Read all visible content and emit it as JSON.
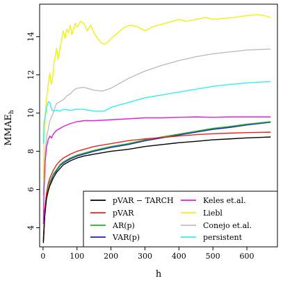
{
  "chart_data": {
    "type": "line",
    "xlabel": "h",
    "ylabel_main": "MMAE",
    "ylabel_sub": "h",
    "xlim": [
      -10,
      690
    ],
    "ylim": [
      3.0,
      15.7
    ],
    "x_ticks": [
      0,
      100,
      200,
      300,
      400,
      500,
      600
    ],
    "x_tick_labels": [
      "0",
      "100",
      "200",
      "300",
      "400",
      "500",
      "600"
    ],
    "y_ticks": [
      4,
      6,
      8,
      10,
      12,
      14
    ],
    "y_tick_labels": [
      "4",
      "6",
      "8",
      "10",
      "12",
      "14"
    ],
    "legend_position": "bottom-right",
    "series": [
      {
        "name": "pVAR − TARCH",
        "color": "#000000",
        "points": [
          [
            1,
            3.2
          ],
          [
            5,
            4.6
          ],
          [
            10,
            5.5
          ],
          [
            15,
            5.9
          ],
          [
            20,
            6.2
          ],
          [
            30,
            6.6
          ],
          [
            40,
            6.9
          ],
          [
            50,
            7.1
          ],
          [
            60,
            7.3
          ],
          [
            80,
            7.5
          ],
          [
            100,
            7.65
          ],
          [
            120,
            7.75
          ],
          [
            150,
            7.85
          ],
          [
            200,
            8.0
          ],
          [
            250,
            8.1
          ],
          [
            300,
            8.25
          ],
          [
            350,
            8.35
          ],
          [
            400,
            8.45
          ],
          [
            450,
            8.52
          ],
          [
            500,
            8.6
          ],
          [
            550,
            8.65
          ],
          [
            600,
            8.7
          ],
          [
            670,
            8.75
          ]
        ]
      },
      {
        "name": "pVAR",
        "color": "#e8241c",
        "points": [
          [
            1,
            3.4
          ],
          [
            5,
            4.9
          ],
          [
            10,
            5.8
          ],
          [
            15,
            6.3
          ],
          [
            20,
            6.6
          ],
          [
            30,
            7.0
          ],
          [
            40,
            7.3
          ],
          [
            50,
            7.5
          ],
          [
            60,
            7.65
          ],
          [
            80,
            7.85
          ],
          [
            100,
            8.0
          ],
          [
            120,
            8.1
          ],
          [
            150,
            8.25
          ],
          [
            200,
            8.4
          ],
          [
            250,
            8.55
          ],
          [
            300,
            8.65
          ],
          [
            350,
            8.72
          ],
          [
            400,
            8.8
          ],
          [
            450,
            8.87
          ],
          [
            500,
            8.92
          ],
          [
            550,
            8.95
          ],
          [
            600,
            8.98
          ],
          [
            670,
            9.0
          ]
        ]
      },
      {
        "name": "AR(p)",
        "color": "#22b522",
        "points": [
          [
            1,
            3.3
          ],
          [
            5,
            4.7
          ],
          [
            10,
            5.6
          ],
          [
            15,
            6.0
          ],
          [
            20,
            6.4
          ],
          [
            30,
            6.8
          ],
          [
            40,
            7.05
          ],
          [
            50,
            7.3
          ],
          [
            60,
            7.45
          ],
          [
            80,
            7.65
          ],
          [
            100,
            7.8
          ],
          [
            120,
            7.9
          ],
          [
            150,
            8.05
          ],
          [
            200,
            8.25
          ],
          [
            250,
            8.4
          ],
          [
            300,
            8.6
          ],
          [
            350,
            8.75
          ],
          [
            400,
            8.9
          ],
          [
            450,
            9.05
          ],
          [
            500,
            9.2
          ],
          [
            550,
            9.3
          ],
          [
            600,
            9.42
          ],
          [
            670,
            9.55
          ]
        ]
      },
      {
        "name": "VAR(p)",
        "color": "#1c1ccc",
        "points": [
          [
            1,
            3.3
          ],
          [
            5,
            4.7
          ],
          [
            10,
            5.55
          ],
          [
            15,
            5.95
          ],
          [
            20,
            6.35
          ],
          [
            30,
            6.75
          ],
          [
            40,
            7.0
          ],
          [
            50,
            7.25
          ],
          [
            60,
            7.4
          ],
          [
            80,
            7.6
          ],
          [
            100,
            7.75
          ],
          [
            120,
            7.85
          ],
          [
            150,
            8.0
          ],
          [
            200,
            8.2
          ],
          [
            250,
            8.35
          ],
          [
            300,
            8.55
          ],
          [
            350,
            8.7
          ],
          [
            400,
            8.85
          ],
          [
            450,
            9.0
          ],
          [
            500,
            9.15
          ],
          [
            550,
            9.25
          ],
          [
            600,
            9.38
          ],
          [
            670,
            9.52
          ]
        ]
      },
      {
        "name": "persistent",
        "color": "#33f0f0",
        "points": [
          [
            1,
            8.4
          ],
          [
            3,
            9.5
          ],
          [
            8,
            10.0
          ],
          [
            12,
            10.4
          ],
          [
            16,
            10.6
          ],
          [
            20,
            10.55
          ],
          [
            25,
            10.2
          ],
          [
            30,
            10.1
          ],
          [
            40,
            10.15
          ],
          [
            50,
            10.1
          ],
          [
            60,
            10.2
          ],
          [
            80,
            10.15
          ],
          [
            100,
            10.2
          ],
          [
            120,
            10.2
          ],
          [
            150,
            10.1
          ],
          [
            180,
            10.1
          ],
          [
            200,
            10.3
          ],
          [
            250,
            10.55
          ],
          [
            300,
            10.8
          ],
          [
            350,
            10.95
          ],
          [
            400,
            11.1
          ],
          [
            450,
            11.25
          ],
          [
            500,
            11.4
          ],
          [
            550,
            11.5
          ],
          [
            600,
            11.58
          ],
          [
            670,
            11.65
          ]
        ]
      },
      {
        "name": "Keles et.al.",
        "color": "#e020e0",
        "points": [
          [
            1,
            4.2
          ],
          [
            3,
            6.0
          ],
          [
            6,
            7.4
          ],
          [
            10,
            8.2
          ],
          [
            15,
            8.6
          ],
          [
            20,
            8.8
          ],
          [
            25,
            8.7
          ],
          [
            30,
            8.9
          ],
          [
            40,
            9.1
          ],
          [
            50,
            9.2
          ],
          [
            60,
            9.3
          ],
          [
            80,
            9.45
          ],
          [
            100,
            9.55
          ],
          [
            120,
            9.6
          ],
          [
            150,
            9.6
          ],
          [
            200,
            9.65
          ],
          [
            250,
            9.7
          ],
          [
            300,
            9.75
          ],
          [
            350,
            9.75
          ],
          [
            400,
            9.78
          ],
          [
            450,
            9.8
          ],
          [
            500,
            9.78
          ],
          [
            550,
            9.8
          ],
          [
            600,
            9.8
          ],
          [
            670,
            9.8
          ]
        ]
      },
      {
        "name": "Liebl",
        "color": "#f2f210",
        "points": [
          [
            1,
            6.5
          ],
          [
            4,
            9.2
          ],
          [
            8,
            10.4
          ],
          [
            12,
            11.0
          ],
          [
            16,
            11.6
          ],
          [
            20,
            12.1
          ],
          [
            24,
            11.5
          ],
          [
            28,
            11.8
          ],
          [
            32,
            12.6
          ],
          [
            36,
            13.0
          ],
          [
            40,
            13.4
          ],
          [
            44,
            12.8
          ],
          [
            48,
            13.2
          ],
          [
            52,
            13.6
          ],
          [
            56,
            14.0
          ],
          [
            60,
            14.3
          ],
          [
            65,
            13.9
          ],
          [
            70,
            14.4
          ],
          [
            75,
            14.2
          ],
          [
            80,
            14.6
          ],
          [
            85,
            14.1
          ],
          [
            90,
            14.4
          ],
          [
            95,
            14.7
          ],
          [
            100,
            14.5
          ],
          [
            110,
            14.8
          ],
          [
            120,
            14.7
          ],
          [
            130,
            14.3
          ],
          [
            140,
            14.6
          ],
          [
            150,
            14.2
          ],
          [
            160,
            13.9
          ],
          [
            170,
            13.7
          ],
          [
            180,
            13.6
          ],
          [
            190,
            13.7
          ],
          [
            200,
            13.9
          ],
          [
            220,
            14.2
          ],
          [
            240,
            14.5
          ],
          [
            260,
            14.6
          ],
          [
            280,
            14.5
          ],
          [
            300,
            14.3
          ],
          [
            320,
            14.5
          ],
          [
            340,
            14.6
          ],
          [
            360,
            14.7
          ],
          [
            380,
            14.8
          ],
          [
            400,
            14.9
          ],
          [
            420,
            14.8
          ],
          [
            450,
            14.9
          ],
          [
            480,
            15.0
          ],
          [
            500,
            14.9
          ],
          [
            530,
            14.95
          ],
          [
            560,
            15.0
          ],
          [
            600,
            15.1
          ],
          [
            630,
            15.15
          ],
          [
            650,
            15.1
          ],
          [
            670,
            15.0
          ]
        ]
      },
      {
        "name": "Conejo et.al.",
        "color": "#bebebe",
        "points": [
          [
            1,
            5.7
          ],
          [
            4,
            7.4
          ],
          [
            8,
            8.3
          ],
          [
            12,
            8.9
          ],
          [
            16,
            9.2
          ],
          [
            20,
            9.6
          ],
          [
            25,
            9.8
          ],
          [
            30,
            10.0
          ],
          [
            35,
            10.3
          ],
          [
            40,
            10.5
          ],
          [
            50,
            10.6
          ],
          [
            60,
            10.7
          ],
          [
            70,
            10.9
          ],
          [
            80,
            11.0
          ],
          [
            90,
            11.2
          ],
          [
            100,
            11.3
          ],
          [
            120,
            11.35
          ],
          [
            150,
            11.2
          ],
          [
            175,
            11.15
          ],
          [
            200,
            11.3
          ],
          [
            250,
            11.8
          ],
          [
            300,
            12.2
          ],
          [
            350,
            12.5
          ],
          [
            400,
            12.75
          ],
          [
            450,
            12.95
          ],
          [
            500,
            13.1
          ],
          [
            550,
            13.2
          ],
          [
            600,
            13.3
          ],
          [
            670,
            13.35
          ]
        ]
      }
    ],
    "legend_order": [
      0,
      5,
      1,
      6,
      2,
      7,
      3,
      4
    ]
  }
}
